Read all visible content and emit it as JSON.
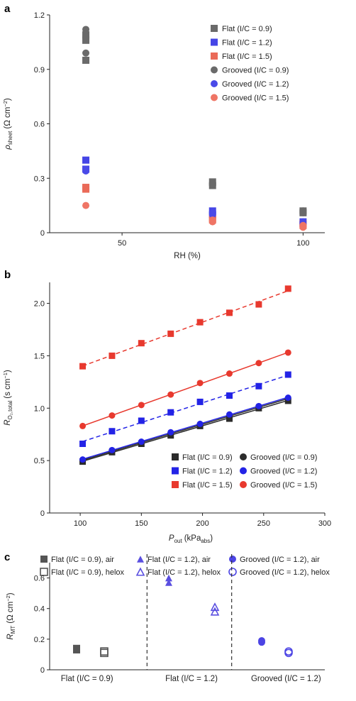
{
  "colors": {
    "dark": "#4d4d4d",
    "blue": "#2323e6",
    "red": "#e8392e",
    "darkB": "#2b2b2b",
    "axis": "#222222",
    "marker_a_flat_dark": "#6a6a6a",
    "marker_a_flat_blue": "#4545e6",
    "marker_a_flat_red": "#ea6a58",
    "marker_a_groov_dark": "#6a6a6a",
    "marker_a_groov_blue": "#4a4ae8",
    "marker_a_groov_red": "#ef7565",
    "marker_c_flat": "#555555",
    "marker_c_purple": "#5a4fe0",
    "marker_c_blue": "#4c44e4"
  },
  "panels": [
    {
      "label": "a"
    },
    {
      "label": "b"
    },
    {
      "label": "c"
    }
  ],
  "chart_data": [
    {
      "type": "scatter",
      "panel": "a",
      "ylabel_symbol": "ρ",
      "ylabel_sub": "sheet",
      "ylabel_unit": "(Ω cm",
      "ylabel_unit_sup": "−2",
      "ylabel_unit_close": ")",
      "xlabel": "RH (%)",
      "xlim": [
        30,
        106
      ],
      "ylim": [
        0,
        1.2
      ],
      "xticks": [
        {
          "v": 50,
          "label": "50"
        },
        {
          "v": 100,
          "label": "100"
        }
      ],
      "yticks": [
        {
          "v": 0,
          "label": "0"
        },
        {
          "v": 0.3,
          "label": "0.3"
        },
        {
          "v": 0.6,
          "label": "0.6"
        },
        {
          "v": 0.9,
          "label": "0.9"
        },
        {
          "v": 1.2,
          "label": "1.2"
        }
      ],
      "legend_position": "top-right",
      "series": [
        {
          "name": "Flat (I/C = 0.9)",
          "marker": "square",
          "color_key": "marker_a_flat_dark",
          "points": [
            [
              40,
              0.95
            ],
            [
              40,
              1.06
            ],
            [
              40,
              1.09
            ],
            [
              75,
              0.26
            ],
            [
              75,
              0.28
            ],
            [
              100,
              0.11
            ],
            [
              100,
              0.12
            ]
          ]
        },
        {
          "name": "Flat (I/C = 1.2)",
          "marker": "square",
          "color_key": "marker_a_flat_blue",
          "points": [
            [
              40,
              0.4
            ],
            [
              40,
              0.35
            ],
            [
              75,
              0.12
            ],
            [
              75,
              0.1
            ],
            [
              100,
              0.06
            ],
            [
              100,
              0.05
            ]
          ]
        },
        {
          "name": "Flat (I/C = 1.5)",
          "marker": "square",
          "color_key": "marker_a_flat_red",
          "points": [
            [
              40,
              0.24
            ],
            [
              40,
              0.25
            ],
            [
              75,
              0.07
            ],
            [
              75,
              0.08
            ],
            [
              100,
              0.04
            ],
            [
              100,
              0.05
            ]
          ]
        },
        {
          "name": "Grooved (I/C = 0.9)",
          "marker": "circle",
          "color_key": "marker_a_groov_dark",
          "points": [
            [
              40,
              1.12
            ],
            [
              40,
              1.08
            ],
            [
              40,
              0.99
            ],
            [
              75,
              0.27
            ],
            [
              75,
              0.26
            ],
            [
              100,
              0.12
            ],
            [
              100,
              0.11
            ]
          ]
        },
        {
          "name": "Grooved (I/C = 1.2)",
          "marker": "circle",
          "color_key": "marker_a_groov_blue",
          "points": [
            [
              40,
              0.35
            ],
            [
              40,
              0.34
            ],
            [
              75,
              0.11
            ],
            [
              75,
              0.1
            ],
            [
              100,
              0.06
            ],
            [
              100,
              0.05
            ]
          ]
        },
        {
          "name": "Grooved (I/C = 1.5)",
          "marker": "circle",
          "color_key": "marker_a_groov_red",
          "points": [
            [
              40,
              0.15
            ],
            [
              75,
              0.06
            ],
            [
              75,
              0.07
            ],
            [
              100,
              0.03
            ],
            [
              100,
              0.04
            ]
          ]
        }
      ]
    },
    {
      "type": "line",
      "panel": "b",
      "ylabel_symbol": "R",
      "ylabel_sub": "O₂,total",
      "ylabel_unit": "(s cm",
      "ylabel_unit_sup": "−1",
      "ylabel_unit_close": ")",
      "xlabel_symbol": "P",
      "xlabel_sub": "out",
      "xlabel_unit": "(kPa",
      "xlabel_unit_sub": "abs",
      "xlabel_unit_close": ")",
      "xlim": [
        75,
        300
      ],
      "ylim": [
        0,
        2.2
      ],
      "xticks": [
        {
          "v": 100,
          "label": "100"
        },
        {
          "v": 150,
          "label": "150"
        },
        {
          "v": 200,
          "label": "200"
        },
        {
          "v": 250,
          "label": "250"
        },
        {
          "v": 300,
          "label": "300"
        }
      ],
      "yticks": [
        {
          "v": 0,
          "label": "0"
        },
        {
          "v": 0.5,
          "label": "0.5"
        },
        {
          "v": 1.0,
          "label": "1.0"
        },
        {
          "v": 1.5,
          "label": "1.5"
        },
        {
          "v": 2.0,
          "label": "2.0"
        }
      ],
      "legend_position": "bottom-right",
      "x": [
        102,
        126,
        150,
        174,
        198,
        222,
        246,
        270
      ],
      "series": [
        {
          "name": "Flat (I/C = 0.9)",
          "marker": "square",
          "color_key": "darkB",
          "dashed": false,
          "values": [
            0.49,
            0.58,
            0.66,
            0.74,
            0.83,
            0.9,
            1.0,
            1.07
          ]
        },
        {
          "name": "Flat (I/C = 1.2)",
          "marker": "square",
          "color_key": "blue",
          "dashed": true,
          "values": [
            0.66,
            0.78,
            0.88,
            0.96,
            1.06,
            1.12,
            1.21,
            1.32
          ]
        },
        {
          "name": "Flat (I/C = 1.5)",
          "marker": "square",
          "color_key": "red",
          "dashed": true,
          "values": [
            1.4,
            1.5,
            1.62,
            1.71,
            1.82,
            1.91,
            1.99,
            2.14
          ]
        },
        {
          "name": "Grooved (I/C = 0.9)",
          "marker": "circle",
          "color_key": "darkB",
          "dashed": false,
          "values": [
            0.5,
            0.59,
            0.67,
            0.76,
            0.84,
            0.92,
            1.01,
            1.09
          ]
        },
        {
          "name": "Grooved (I/C = 1.2)",
          "marker": "circle",
          "color_key": "blue",
          "dashed": false,
          "values": [
            0.51,
            0.6,
            0.68,
            0.77,
            0.85,
            0.94,
            1.02,
            1.1
          ]
        },
        {
          "name": "Grooved (I/C = 1.5)",
          "marker": "circle",
          "color_key": "red",
          "dashed": false,
          "values": [
            0.83,
            0.93,
            1.03,
            1.13,
            1.24,
            1.33,
            1.43,
            1.53
          ]
        }
      ]
    },
    {
      "type": "scatter",
      "panel": "c",
      "ylabel_symbol": "R",
      "ylabel_sub": "MT",
      "ylabel_unit": "(Ω cm",
      "ylabel_unit_sup": "−2",
      "ylabel_unit_close": ")",
      "ylim": [
        0,
        0.7
      ],
      "yticks": [
        {
          "v": 0,
          "label": "0"
        },
        {
          "v": 0.2,
          "label": "0.2"
        },
        {
          "v": 0.4,
          "label": "0.4"
        },
        {
          "v": 0.6,
          "label": "0.6"
        }
      ],
      "categories": [
        "Flat (I/C = 0.9)",
        "Flat (I/C = 1.2)",
        "Grooved (I/C = 1.2)"
      ],
      "legend_position": "top",
      "series": [
        {
          "name": "Flat (I/C = 0.9), air",
          "marker": "square",
          "filled": true,
          "color_key": "marker_c_flat",
          "category": 0,
          "slot": 0,
          "values": [
            0.13,
            0.14
          ]
        },
        {
          "name": "Flat (I/C = 0.9), helox",
          "marker": "square",
          "filled": false,
          "color_key": "marker_c_flat",
          "category": 0,
          "slot": 1,
          "values": [
            0.11,
            0.12
          ]
        },
        {
          "name": "Flat (I/C = 1.2), air",
          "marker": "triangle",
          "filled": true,
          "color_key": "marker_c_purple",
          "category": 1,
          "slot": 0,
          "values": [
            0.57,
            0.6
          ]
        },
        {
          "name": "Flat (I/C = 1.2), helox",
          "marker": "triangle",
          "filled": false,
          "color_key": "marker_c_purple",
          "category": 1,
          "slot": 1,
          "values": [
            0.38,
            0.41
          ]
        },
        {
          "name": "Grooved (I/C = 1.2), air",
          "marker": "circle",
          "filled": true,
          "color_key": "marker_c_blue",
          "category": 2,
          "slot": 0,
          "values": [
            0.18,
            0.19
          ]
        },
        {
          "name": "Grooved (I/C = 1.2), helox",
          "marker": "circle",
          "filled": false,
          "color_key": "marker_c_blue",
          "category": 2,
          "slot": 1,
          "values": [
            0.11,
            0.12
          ]
        }
      ]
    }
  ]
}
